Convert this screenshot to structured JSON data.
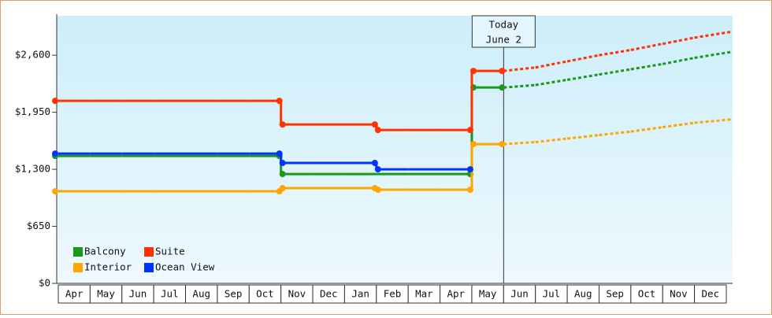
{
  "chart_data": {
    "type": "step-line",
    "categories": [
      "Apr",
      "May",
      "Jun",
      "Jul",
      "Aug",
      "Sep",
      "Oct",
      "Nov",
      "Dec",
      "Jan",
      "Feb",
      "Mar",
      "Apr",
      "May",
      "Jun",
      "Jul",
      "Aug",
      "Sep",
      "Oct",
      "Nov",
      "Dec"
    ],
    "series": [
      {
        "name": "Balcony",
        "color": "#1a9a1a",
        "values": [
          1452,
          1452,
          1452,
          1452,
          1452,
          1452,
          1452,
          1246,
          1246,
          1246,
          1246,
          1246,
          1246,
          2232,
          2260,
          2320,
          2380,
          2440,
          2500,
          2570,
          2640
        ]
      },
      {
        "name": "Suite",
        "color": "#ff3300",
        "values": [
          2080,
          2080,
          2080,
          2080,
          2080,
          2080,
          2080,
          1811,
          1811,
          1811,
          1748,
          1748,
          1748,
          2421,
          2460,
          2530,
          2600,
          2660,
          2730,
          2800,
          2870
        ]
      },
      {
        "name": "Interior",
        "color": "#ffa500",
        "values": [
          1049,
          1049,
          1049,
          1049,
          1049,
          1049,
          1049,
          1085,
          1085,
          1085,
          1067,
          1067,
          1067,
          1587,
          1610,
          1650,
          1690,
          1730,
          1780,
          1830,
          1870
        ]
      },
      {
        "name": "Ocean View",
        "color": "#0033ff",
        "values": [
          1479,
          1479,
          1479,
          1479,
          1479,
          1479,
          1479,
          1372,
          1372,
          1372,
          1300,
          1300,
          1300,
          null,
          null,
          null,
          null,
          null,
          null,
          null,
          null
        ]
      }
    ],
    "ylim": [
      0,
      3050
    ],
    "yticks": [
      {
        "value": 0,
        "label": "$0"
      },
      {
        "value": 650,
        "label": "$650"
      },
      {
        "value": 1300,
        "label": "$1,300"
      },
      {
        "value": 1950,
        "label": "$1,950"
      },
      {
        "value": 2600,
        "label": "$2,600"
      }
    ],
    "dashed_from_index": 14,
    "annotation": {
      "lines": [
        "Today",
        "June 2"
      ],
      "at_index": 14
    },
    "legend": "lower left"
  }
}
